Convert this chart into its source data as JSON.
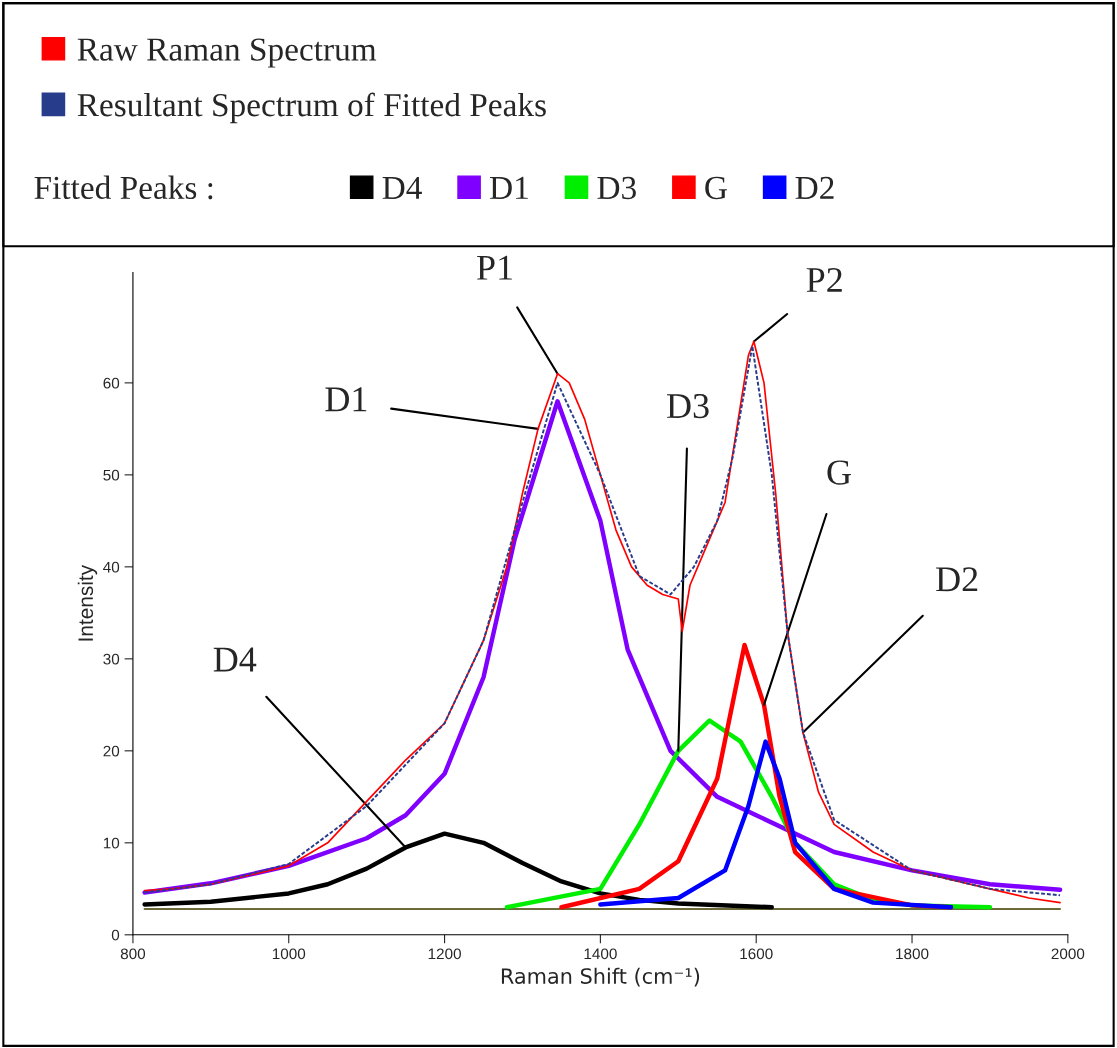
{
  "chart_data": {
    "type": "line",
    "xlabel": "Raman Shift (cm⁻¹)",
    "ylabel": "Intensity",
    "legend_title": "Fitted Peaks :",
    "legend": "top",
    "grid": false,
    "xlim": [
      800,
      2000
    ],
    "xticks": [
      800,
      1000,
      1200,
      1400,
      1600,
      1800,
      2000
    ],
    "ylim": [
      0,
      72
    ],
    "yticks": [
      0,
      10,
      20,
      30,
      40,
      50,
      60
    ],
    "series": [
      {
        "name": "Raw Raman Spectrum",
        "color": "#ff0000",
        "x": [
          815,
          850,
          900,
          950,
          1000,
          1050,
          1100,
          1150,
          1200,
          1250,
          1280,
          1300,
          1320,
          1345,
          1360,
          1380,
          1400,
          1420,
          1440,
          1460,
          1480,
          1500,
          1505,
          1515,
          1530,
          1550,
          1560,
          1575,
          1590,
          1597,
          1610,
          1625,
          1640,
          1660,
          1680,
          1700,
          1750,
          1800,
          1850,
          1900,
          1950,
          1990
        ],
        "values": [
          4.8,
          5,
          5.5,
          6.5,
          7.5,
          10,
          14.5,
          19,
          23,
          32,
          40,
          48,
          55,
          61,
          60,
          56,
          50,
          44,
          40,
          38,
          37,
          36.5,
          33,
          38,
          41,
          45,
          47,
          55,
          63,
          64.5,
          60,
          48,
          33,
          22,
          15.5,
          12,
          9,
          7,
          6,
          5,
          4,
          3.5
        ]
      },
      {
        "name": "Resultant Spectrum of Fitted Peaks",
        "color": "#283c8c",
        "line_style": "dashed",
        "x": [
          815,
          900,
          1000,
          1100,
          1200,
          1250,
          1300,
          1345,
          1400,
          1450,
          1490,
          1520,
          1550,
          1570,
          1595,
          1620,
          1640,
          1660,
          1700,
          1800,
          1900,
          1990
        ],
        "values": [
          4.6,
          5.5,
          7.7,
          14,
          23,
          32,
          47,
          60,
          50,
          39,
          37,
          40,
          45,
          52,
          64,
          50,
          33,
          22,
          12.5,
          7,
          5,
          4.3
        ]
      },
      {
        "color": "#6b6b3a",
        "x": [
          815,
          1990
        ],
        "values": [
          2.8,
          2.8
        ]
      },
      {
        "name": "D4",
        "color": "#000000",
        "x": [
          815,
          900,
          1000,
          1050,
          1100,
          1150,
          1200,
          1250,
          1300,
          1350,
          1400,
          1450,
          1500,
          1620
        ],
        "values": [
          3.3,
          3.6,
          4.5,
          5.5,
          7.2,
          9.5,
          11,
          10,
          7.8,
          5.8,
          4.5,
          3.8,
          3.4,
          3
        ]
      },
      {
        "name": "D1",
        "color": "#8000ff",
        "x": [
          815,
          900,
          1000,
          1100,
          1150,
          1200,
          1250,
          1290,
          1345,
          1400,
          1435,
          1490,
          1550,
          1600,
          1700,
          1800,
          1900,
          1990
        ],
        "values": [
          4.6,
          5.6,
          7.5,
          10.5,
          13,
          17.5,
          28,
          43,
          58,
          45,
          31,
          20,
          15,
          13,
          9,
          7,
          5.5,
          4.9
        ]
      },
      {
        "name": "D3",
        "color": "#00ee00",
        "x": [
          1280,
          1400,
          1450,
          1500,
          1540,
          1580,
          1620,
          1650,
          1700,
          1750,
          1800,
          1900
        ],
        "values": [
          3,
          5,
          12,
          20,
          23.3,
          21,
          15,
          10,
          5.5,
          3.8,
          3.2,
          3
        ]
      },
      {
        "name": "G",
        "color": "#ff0000",
        "x": [
          1350,
          1450,
          1500,
          1550,
          1585,
          1610,
          1630,
          1650,
          1700,
          1800,
          1850
        ],
        "values": [
          3,
          5,
          8,
          17,
          31.5,
          25,
          15,
          9,
          5,
          3.2,
          3
        ]
      },
      {
        "name": "D2",
        "color": "#0000ff",
        "x": [
          1400,
          1500,
          1560,
          1590,
          1612,
          1630,
          1650,
          1700,
          1750,
          1850
        ],
        "values": [
          3.3,
          4,
          7,
          14,
          21,
          17,
          10,
          5,
          3.5,
          3
        ]
      }
    ],
    "annotations": [
      {
        "text": "P1",
        "x": 1345,
        "y": 61
      },
      {
        "text": "D1",
        "x": 1320,
        "y": 55
      },
      {
        "text": "D3",
        "x": 1500,
        "y": 20
      },
      {
        "text": "G",
        "x": 1610,
        "y": 25
      },
      {
        "text": "D2",
        "x": 1660,
        "y": 22
      },
      {
        "text": "D4",
        "x": 1150,
        "y": 9.5
      },
      {
        "text": "P2",
        "x": 1597,
        "y": 64.5
      }
    ]
  }
}
